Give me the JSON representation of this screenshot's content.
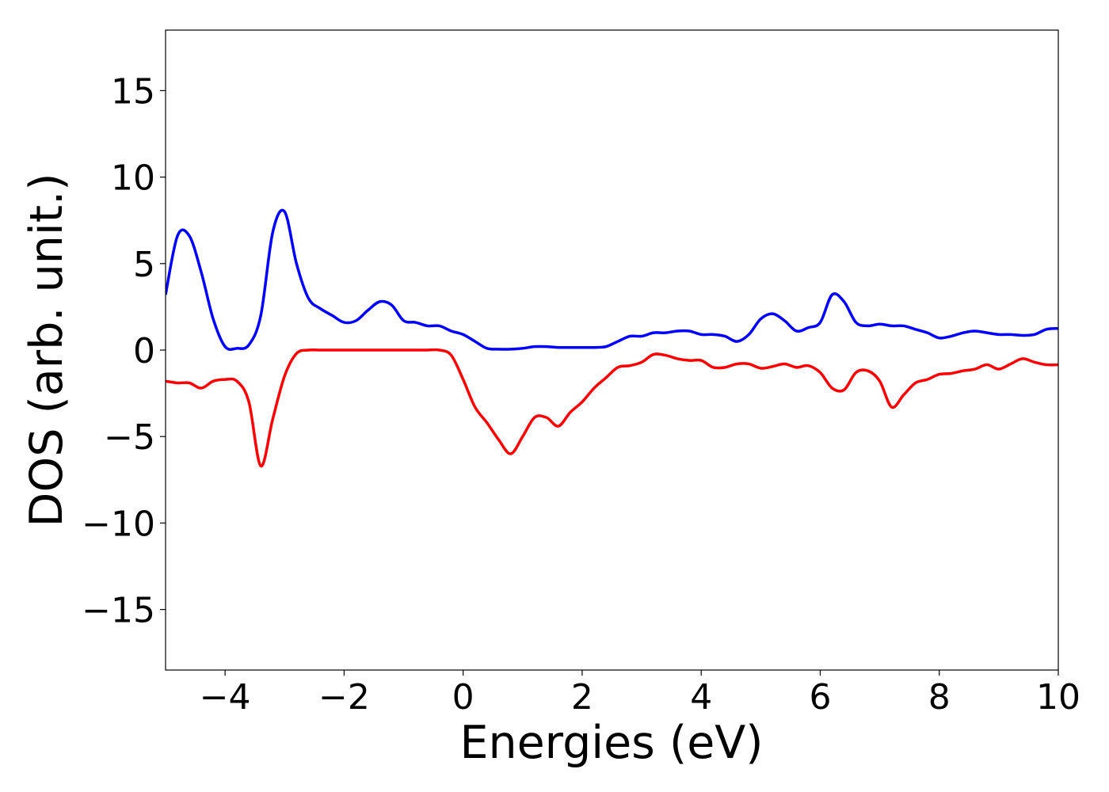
{
  "chart_data": {
    "type": "line",
    "xlabel": "Energies (eV)",
    "ylabel": "DOS (arb. unit.)",
    "x": [
      -5.0,
      -4.8,
      -4.6,
      -4.4,
      -4.2,
      -4.0,
      -3.8,
      -3.6,
      -3.4,
      -3.2,
      -3.0,
      -2.8,
      -2.6,
      -2.4,
      -2.2,
      -2.0,
      -1.8,
      -1.6,
      -1.4,
      -1.2,
      -1.0,
      -0.8,
      -0.6,
      -0.4,
      -0.2,
      0.0,
      0.2,
      0.4,
      0.6,
      0.8,
      1.0,
      1.2,
      1.4,
      1.6,
      1.8,
      2.0,
      2.2,
      2.4,
      2.6,
      2.8,
      3.0,
      3.2,
      3.4,
      3.6,
      3.8,
      4.0,
      4.2,
      4.4,
      4.6,
      4.8,
      5.0,
      5.2,
      5.4,
      5.6,
      5.8,
      6.0,
      6.2,
      6.4,
      6.6,
      6.8,
      7.0,
      7.2,
      7.4,
      7.6,
      7.8,
      8.0,
      8.2,
      8.4,
      8.6,
      8.8,
      9.0,
      9.2,
      9.4,
      9.6,
      9.8,
      10.0
    ],
    "series": [
      {
        "color": "#0000ff",
        "values": [
          3.2,
          6.6,
          6.6,
          4.5,
          1.8,
          0.2,
          0.1,
          0.3,
          2.0,
          6.8,
          8.0,
          5.0,
          3.0,
          2.4,
          2.0,
          1.6,
          1.7,
          2.3,
          2.8,
          2.6,
          1.7,
          1.6,
          1.4,
          1.4,
          1.1,
          0.9,
          0.5,
          0.1,
          0.05,
          0.05,
          0.1,
          0.2,
          0.2,
          0.15,
          0.15,
          0.15,
          0.15,
          0.2,
          0.5,
          0.8,
          0.8,
          1.0,
          1.0,
          1.1,
          1.1,
          0.9,
          0.9,
          0.8,
          0.5,
          0.9,
          1.8,
          2.1,
          1.7,
          1.1,
          1.3,
          1.6,
          3.2,
          2.8,
          1.6,
          1.4,
          1.5,
          1.4,
          1.4,
          1.2,
          1.0,
          0.7,
          0.8,
          1.0,
          1.1,
          1.0,
          0.9,
          0.9,
          0.85,
          0.9,
          1.2,
          1.25
        ]
      },
      {
        "color": "#ff0000",
        "values": [
          -1.8,
          -1.9,
          -1.9,
          -2.2,
          -1.8,
          -1.7,
          -1.8,
          -3.0,
          -6.7,
          -4.0,
          -1.5,
          -0.2,
          0,
          0,
          0,
          0,
          0,
          0,
          0,
          0,
          0,
          0,
          0,
          0,
          -0.3,
          -1.7,
          -3.3,
          -4.2,
          -5.2,
          -6.0,
          -5.0,
          -3.9,
          -3.9,
          -4.4,
          -3.6,
          -3.0,
          -2.2,
          -1.6,
          -1.0,
          -0.9,
          -0.7,
          -0.25,
          -0.3,
          -0.5,
          -0.6,
          -0.6,
          -1.0,
          -1.0,
          -0.8,
          -0.8,
          -1.05,
          -0.95,
          -0.8,
          -1.0,
          -0.9,
          -1.3,
          -2.2,
          -2.3,
          -1.3,
          -1.2,
          -1.8,
          -3.3,
          -2.6,
          -1.9,
          -1.7,
          -1.4,
          -1.35,
          -1.2,
          -1.1,
          -0.85,
          -1.1,
          -0.8,
          -0.5,
          -0.7,
          -0.85,
          -0.85
        ]
      }
    ],
    "xlim": [
      -5,
      10
    ],
    "xticks": [
      {
        "value": -4,
        "label": "−4"
      },
      {
        "value": -2,
        "label": "−2"
      },
      0,
      2,
      4,
      6,
      8,
      10
    ],
    "ylim": [
      -18.5,
      18.5
    ],
    "yticks": [
      {
        "value": -15,
        "label": "−15"
      },
      {
        "value": -10,
        "label": "−10"
      },
      {
        "value": -5,
        "label": "−5"
      },
      0,
      5,
      10,
      15
    ]
  }
}
